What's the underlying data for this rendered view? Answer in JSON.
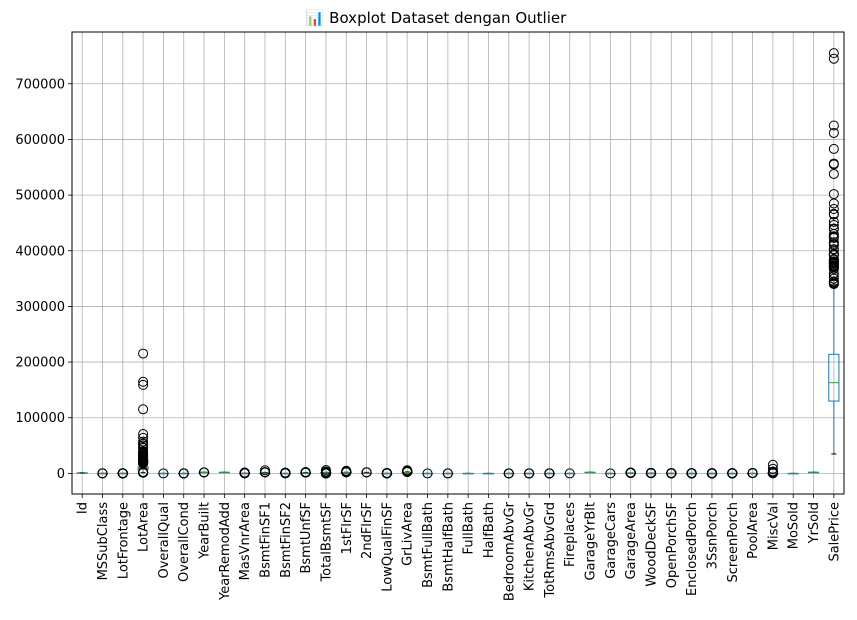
{
  "chart_data": {
    "type": "boxplot",
    "title": "📊 Boxplot Dataset dengan Outlier",
    "xlabel": "",
    "ylabel": "",
    "ylim": [
      -37000,
      793000
    ],
    "yticks": [
      0,
      100000,
      200000,
      300000,
      400000,
      500000,
      600000,
      700000
    ],
    "ytick_labels": [
      "0",
      "100000",
      "200000",
      "300000",
      "400000",
      "500000",
      "600000",
      "700000"
    ],
    "grid": true,
    "colors": {
      "box": "#1f77b4",
      "median": "#2ca02c",
      "outlier": "#000000",
      "grid": "#b0b0b0"
    },
    "categories": [
      "Id",
      "MSSubClass",
      "LotFrontage",
      "LotArea",
      "OverallQual",
      "OverallCond",
      "YearBuilt",
      "YearRemodAdd",
      "MasVnrArea",
      "BsmtFinSF1",
      "BsmtFinSF2",
      "BsmtUnfSF",
      "TotalBsmtSF",
      "1stFlrSF",
      "2ndFlrSF",
      "LowQualFinSF",
      "GrLivArea",
      "BsmtFullBath",
      "BsmtHalfBath",
      "FullBath",
      "HalfBath",
      "BedroomAbvGr",
      "KitchenAbvGr",
      "TotRmsAbvGrd",
      "Fireplaces",
      "GarageYrBlt",
      "GarageCars",
      "GarageArea",
      "WoodDeckSF",
      "OpenPorchSF",
      "EnclosedPorch",
      "3SsnPorch",
      "ScreenPorch",
      "PoolArea",
      "MiscVal",
      "MoSold",
      "YrSold",
      "SalePrice"
    ],
    "boxes": [
      {
        "whislo": 1,
        "q1": 366,
        "med": 730,
        "q3": 1095,
        "whishi": 1460,
        "fliers": []
      },
      {
        "whislo": 20,
        "q1": 20,
        "med": 50,
        "q3": 70,
        "whishi": 145,
        "fliers": [
          160,
          180,
          190
        ]
      },
      {
        "whislo": 21,
        "q1": 59,
        "med": 69,
        "q3": 80,
        "whishi": 111,
        "fliers": [
          313,
          182,
          174,
          168,
          160,
          152,
          144,
          141,
          138,
          130,
          124,
          121,
          21,
          24,
          30,
          32,
          34
        ]
      },
      {
        "whislo": 1300,
        "q1": 7554,
        "med": 9478,
        "q3": 11602,
        "whishi": 17671,
        "fliers": [
          215245,
          164660,
          159000,
          115149,
          70761,
          63887,
          57200,
          53504,
          53227,
          50271,
          46589,
          45600,
          40094,
          39104,
          36500,
          35760,
          35133,
          34650,
          32668,
          31770,
          29959,
          28698,
          27650,
          26178,
          25419,
          25339,
          25286,
          25095,
          24682,
          23595,
          22950,
          22420,
          21930,
          21872,
          21750,
          21695,
          21453,
          21384,
          21286,
          20896,
          20781,
          20544,
          20431,
          20062,
          19900,
          19690,
          19378,
          19296,
          19138,
          18890,
          18800,
          18450,
          18386,
          18030,
          1300,
          1477,
          1491,
          1526,
          1533,
          1596,
          1680,
          1869,
          1890,
          1920,
          1950,
          1974,
          2016,
          2117,
          2280,
          2289,
          2308,
          2368
        ]
      },
      {
        "whislo": 2,
        "q1": 5,
        "med": 6,
        "q3": 7,
        "whishi": 10,
        "fliers": [
          1
        ]
      },
      {
        "whislo": 4,
        "q1": 5,
        "med": 5,
        "q3": 6,
        "whishi": 7,
        "fliers": [
          1,
          2,
          3,
          8,
          9
        ]
      },
      {
        "whislo": 1885,
        "q1": 1954,
        "med": 1973,
        "q3": 2000,
        "whishi": 2010,
        "fliers": [
          1872,
          1875,
          1880,
          1882
        ]
      },
      {
        "whislo": 1950,
        "q1": 1967,
        "med": 1994,
        "q3": 2004,
        "whishi": 2010,
        "fliers": []
      },
      {
        "whislo": 0,
        "q1": 0,
        "med": 0,
        "q3": 166,
        "whishi": 415,
        "fliers": [
          1600,
          1378,
          1170,
          1129,
          1115,
          1047,
          1031,
          975,
          921,
          894,
          860,
          816,
          796,
          772,
          760,
          748,
          731,
          664,
          651,
          650,
          640,
          600,
          576,
          573,
          562,
          554,
          513,
          510,
          506,
          480,
          472,
          468,
          456,
          450,
          438,
          436,
          432,
          428,
          425,
          420,
          416
        ]
      },
      {
        "whislo": 0,
        "q1": 0,
        "med": 383,
        "q3": 712,
        "whishi": 1767,
        "fliers": [
          5644,
          2260,
          2188,
          2096,
          1904,
          1880,
          1810
        ]
      },
      {
        "whislo": 0,
        "q1": 0,
        "med": 0,
        "q3": 0,
        "whishi": 0,
        "fliers": [
          1474,
          1127,
          1120,
          1085,
          1080,
          1063,
          1061,
          1057,
          1031,
          1029,
          973,
          906,
          872,
          869,
          864,
          859,
          855,
          841,
          834,
          791,
          765,
          712,
          630,
          625,
          618,
          612,
          608,
          600,
          590,
          580,
          551,
          547,
          544,
          539,
          532,
          531,
          522,
          500,
          496,
          495,
          482,
          480,
          479,
          469,
          468,
          466,
          465,
          441,
          435,
          420
        ]
      },
      {
        "whislo": 0,
        "q1": 223,
        "med": 477,
        "q3": 808,
        "whishi": 1685,
        "fliers": [
          2336,
          2153,
          2121,
          2046,
          2042,
          2002,
          1969,
          1935,
          1926,
          1907,
          1905,
          1869,
          1836,
          1800,
          1795,
          1777,
          1774,
          1753,
          1752,
          1734,
          1726,
          1710,
          1709,
          1705,
          1694,
          1689
        ]
      },
      {
        "whislo": 105,
        "q1": 795,
        "med": 991,
        "q3": 1298,
        "whishi": 2046,
        "fliers": [
          6110,
          3206,
          3200,
          3138,
          3094,
          2633,
          2524,
          2444,
          2396,
          2392,
          2216,
          2158,
          2153,
          2136,
          2121,
          2110,
          2078,
          2077,
          2076,
          2061,
          0,
          0,
          0,
          0,
          0
        ]
      },
      {
        "whislo": 334,
        "q1": 882,
        "med": 1087,
        "q3": 1391,
        "whishi": 2158,
        "fliers": [
          4692,
          3228,
          3138,
          2898,
          2633,
          2524,
          2444,
          2411,
          2402,
          2392,
          2364,
          2259,
          2234,
          2217,
          2207,
          2196,
          2158
        ]
      },
      {
        "whislo": 0,
        "q1": 0,
        "med": 0,
        "q3": 728,
        "whishi": 1818,
        "fliers": [
          2065,
          1872,
          1836
        ]
      },
      {
        "whislo": 0,
        "q1": 0,
        "med": 0,
        "q3": 0,
        "whishi": 0,
        "fliers": [
          572,
          528,
          515,
          514,
          513,
          481,
          479,
          473,
          420,
          397,
          392,
          390,
          384,
          371,
          360,
          234,
          232,
          205,
          156,
          144,
          120,
          80,
          53
        ]
      },
      {
        "whislo": 334,
        "q1": 1130,
        "med": 1464,
        "q3": 1777,
        "whishi": 2730,
        "fliers": [
          5642,
          4676,
          4476,
          4316,
          3627,
          3608,
          3493,
          3447,
          3395,
          3279,
          3238,
          3228,
          3222,
          3194,
          3140,
          3138,
          3112,
          3086,
          3082,
          2978,
          2945,
          2872,
          2868,
          2854,
          2842,
          2822,
          2810,
          2792,
          2784,
          2775
        ]
      },
      {
        "whislo": 0,
        "q1": 0,
        "med": 0,
        "q3": 1,
        "whishi": 2,
        "fliers": [
          3
        ]
      },
      {
        "whislo": 0,
        "q1": 0,
        "med": 0,
        "q3": 0,
        "whishi": 0,
        "fliers": [
          1,
          2
        ]
      },
      {
        "whislo": 0,
        "q1": 1,
        "med": 2,
        "q3": 2,
        "whishi": 3,
        "fliers": []
      },
      {
        "whislo": 0,
        "q1": 0,
        "med": 0,
        "q3": 1,
        "whishi": 2,
        "fliers": []
      },
      {
        "whislo": 1,
        "q1": 2,
        "med": 3,
        "q3": 3,
        "whishi": 4,
        "fliers": [
          0,
          5,
          6,
          8
        ]
      },
      {
        "whislo": 1,
        "q1": 1,
        "med": 1,
        "q3": 1,
        "whishi": 1,
        "fliers": [
          0,
          2,
          3
        ]
      },
      {
        "whislo": 3,
        "q1": 5,
        "med": 6,
        "q3": 7,
        "whishi": 10,
        "fliers": [
          2,
          11,
          12,
          14
        ]
      },
      {
        "whislo": 0,
        "q1": 0,
        "med": 1,
        "q3": 1,
        "whishi": 2,
        "fliers": [
          3
        ]
      },
      {
        "whislo": 1900,
        "q1": 1961,
        "med": 1980,
        "q3": 2002,
        "whishi": 2010,
        "fliers": []
      },
      {
        "whislo": 0,
        "q1": 1,
        "med": 2,
        "q3": 2,
        "whishi": 3,
        "fliers": [
          4
        ]
      },
      {
        "whislo": 0,
        "q1": 334,
        "med": 480,
        "q3": 576,
        "whishi": 936,
        "fliers": [
          1418,
          1390,
          1356,
          1248,
          1220,
          1166,
          1134,
          1069,
          1053,
          1052,
          1043,
          1025,
          1020,
          1014,
          995,
          968,
          966,
          954,
          950,
          948
        ]
      },
      {
        "whislo": 0,
        "q1": 0,
        "med": 0,
        "q3": 168,
        "whishi": 420,
        "fliers": [
          857,
          736,
          728,
          690,
          670,
          668,
          635,
          576,
          574,
          550,
          536,
          519,
          517,
          503,
          501,
          495,
          486,
          483,
          480,
          474
        ]
      },
      {
        "whislo": 0,
        "q1": 0,
        "med": 25,
        "q3": 68,
        "whishi": 170,
        "fliers": [
          547,
          523,
          502,
          418,
          406,
          364,
          341,
          319,
          312,
          304,
          292,
          285,
          280,
          274,
          267,
          260,
          258,
          252,
          250,
          248,
          247
        ]
      },
      {
        "whislo": 0,
        "q1": 0,
        "med": 0,
        "q3": 0,
        "whishi": 0,
        "fliers": [
          552,
          386,
          330,
          318,
          301,
          294,
          293,
          291,
          286,
          272,
          264,
          252,
          248,
          244,
          240,
          236,
          230,
          228,
          224,
          221,
          219,
          216,
          214,
          212,
          210,
          205,
          202,
          200
        ]
      },
      {
        "whislo": 0,
        "q1": 0,
        "med": 0,
        "q3": 0,
        "whishi": 0,
        "fliers": [
          508,
          407,
          320,
          304,
          290,
          245,
          238,
          216,
          196,
          182,
          180,
          168,
          162,
          153,
          144,
          140,
          130,
          96,
          23
        ]
      },
      {
        "whislo": 0,
        "q1": 0,
        "med": 0,
        "q3": 0,
        "whishi": 0,
        "fliers": [
          480,
          440,
          410,
          396,
          385,
          374,
          322,
          312,
          291,
          288,
          280,
          273,
          270,
          266,
          263,
          260,
          259,
          255,
          252,
          234,
          224,
          222,
          220,
          216,
          210,
          200,
          192,
          190,
          189,
          185,
          184,
          182,
          180,
          176,
          175,
          170,
          168,
          165,
          164,
          163
        ]
      },
      {
        "whislo": 0,
        "q1": 0,
        "med": 0,
        "q3": 0,
        "whishi": 0,
        "fliers": [
          738,
          648,
          576,
          555,
          519,
          512,
          480
        ]
      },
      {
        "whislo": 0,
        "q1": 0,
        "med": 0,
        "q3": 0,
        "whishi": 0,
        "fliers": [
          15500,
          8300,
          3500,
          2500,
          2000,
          1400,
          1300,
          1200,
          1150,
          800,
          700,
          650,
          620,
          600,
          560,
          500,
          480,
          450,
          400,
          350
        ]
      },
      {
        "whislo": 1,
        "q1": 5,
        "med": 6,
        "q3": 8,
        "whishi": 12,
        "fliers": []
      },
      {
        "whislo": 2006,
        "q1": 2007,
        "med": 2008,
        "q3": 2009,
        "whishi": 2010,
        "fliers": []
      },
      {
        "whislo": 34900,
        "q1": 129975,
        "med": 163000,
        "q3": 214000,
        "whishi": 340000,
        "fliers": [
          755000,
          745000,
          625000,
          611657,
          582933,
          556581,
          555000,
          538000,
          501837,
          485000,
          475000,
          466500,
          465000,
          451950,
          446261,
          440000,
          438780,
          430000,
          426000,
          424870,
          423000,
          415298,
          412500,
          410000,
          402861,
          402000,
          394617,
          394432,
          392500,
          392000,
          385000,
          384500,
          383970,
          381000,
          380000,
          378500,
          377500,
          377426,
          375000,
          373000,
          372500,
          372402,
          370878,
          369900,
          367294,
          359100,
          354000,
          350000,
          345000,
          344133,
          342643,
          341000,
          340000
        ]
      }
    ]
  }
}
